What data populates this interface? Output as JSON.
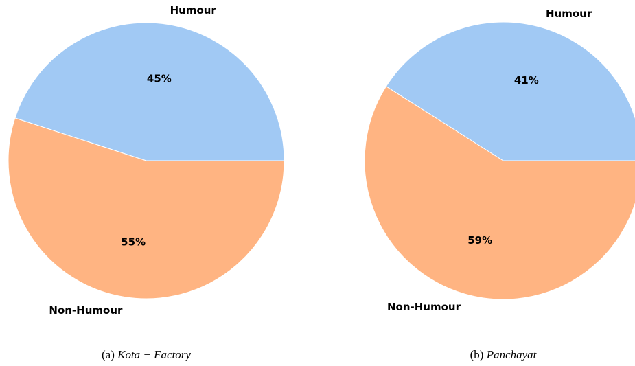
{
  "chart_data": [
    {
      "type": "pie",
      "categories": [
        "Humour",
        "Non-Humour"
      ],
      "values": [
        45,
        55
      ],
      "value_labels": [
        "45%",
        "55%"
      ],
      "colors": [
        "#a1c9f4",
        "#ffb482"
      ],
      "caption_label": "(a)",
      "caption": "Kota − Factory"
    },
    {
      "type": "pie",
      "categories": [
        "Humour",
        "Non-Humour"
      ],
      "values": [
        41,
        59
      ],
      "value_labels": [
        "41%",
        "59%"
      ],
      "colors": [
        "#a1c9f4",
        "#ffb482"
      ],
      "caption_label": "(b)",
      "caption": "Panchayat"
    }
  ]
}
